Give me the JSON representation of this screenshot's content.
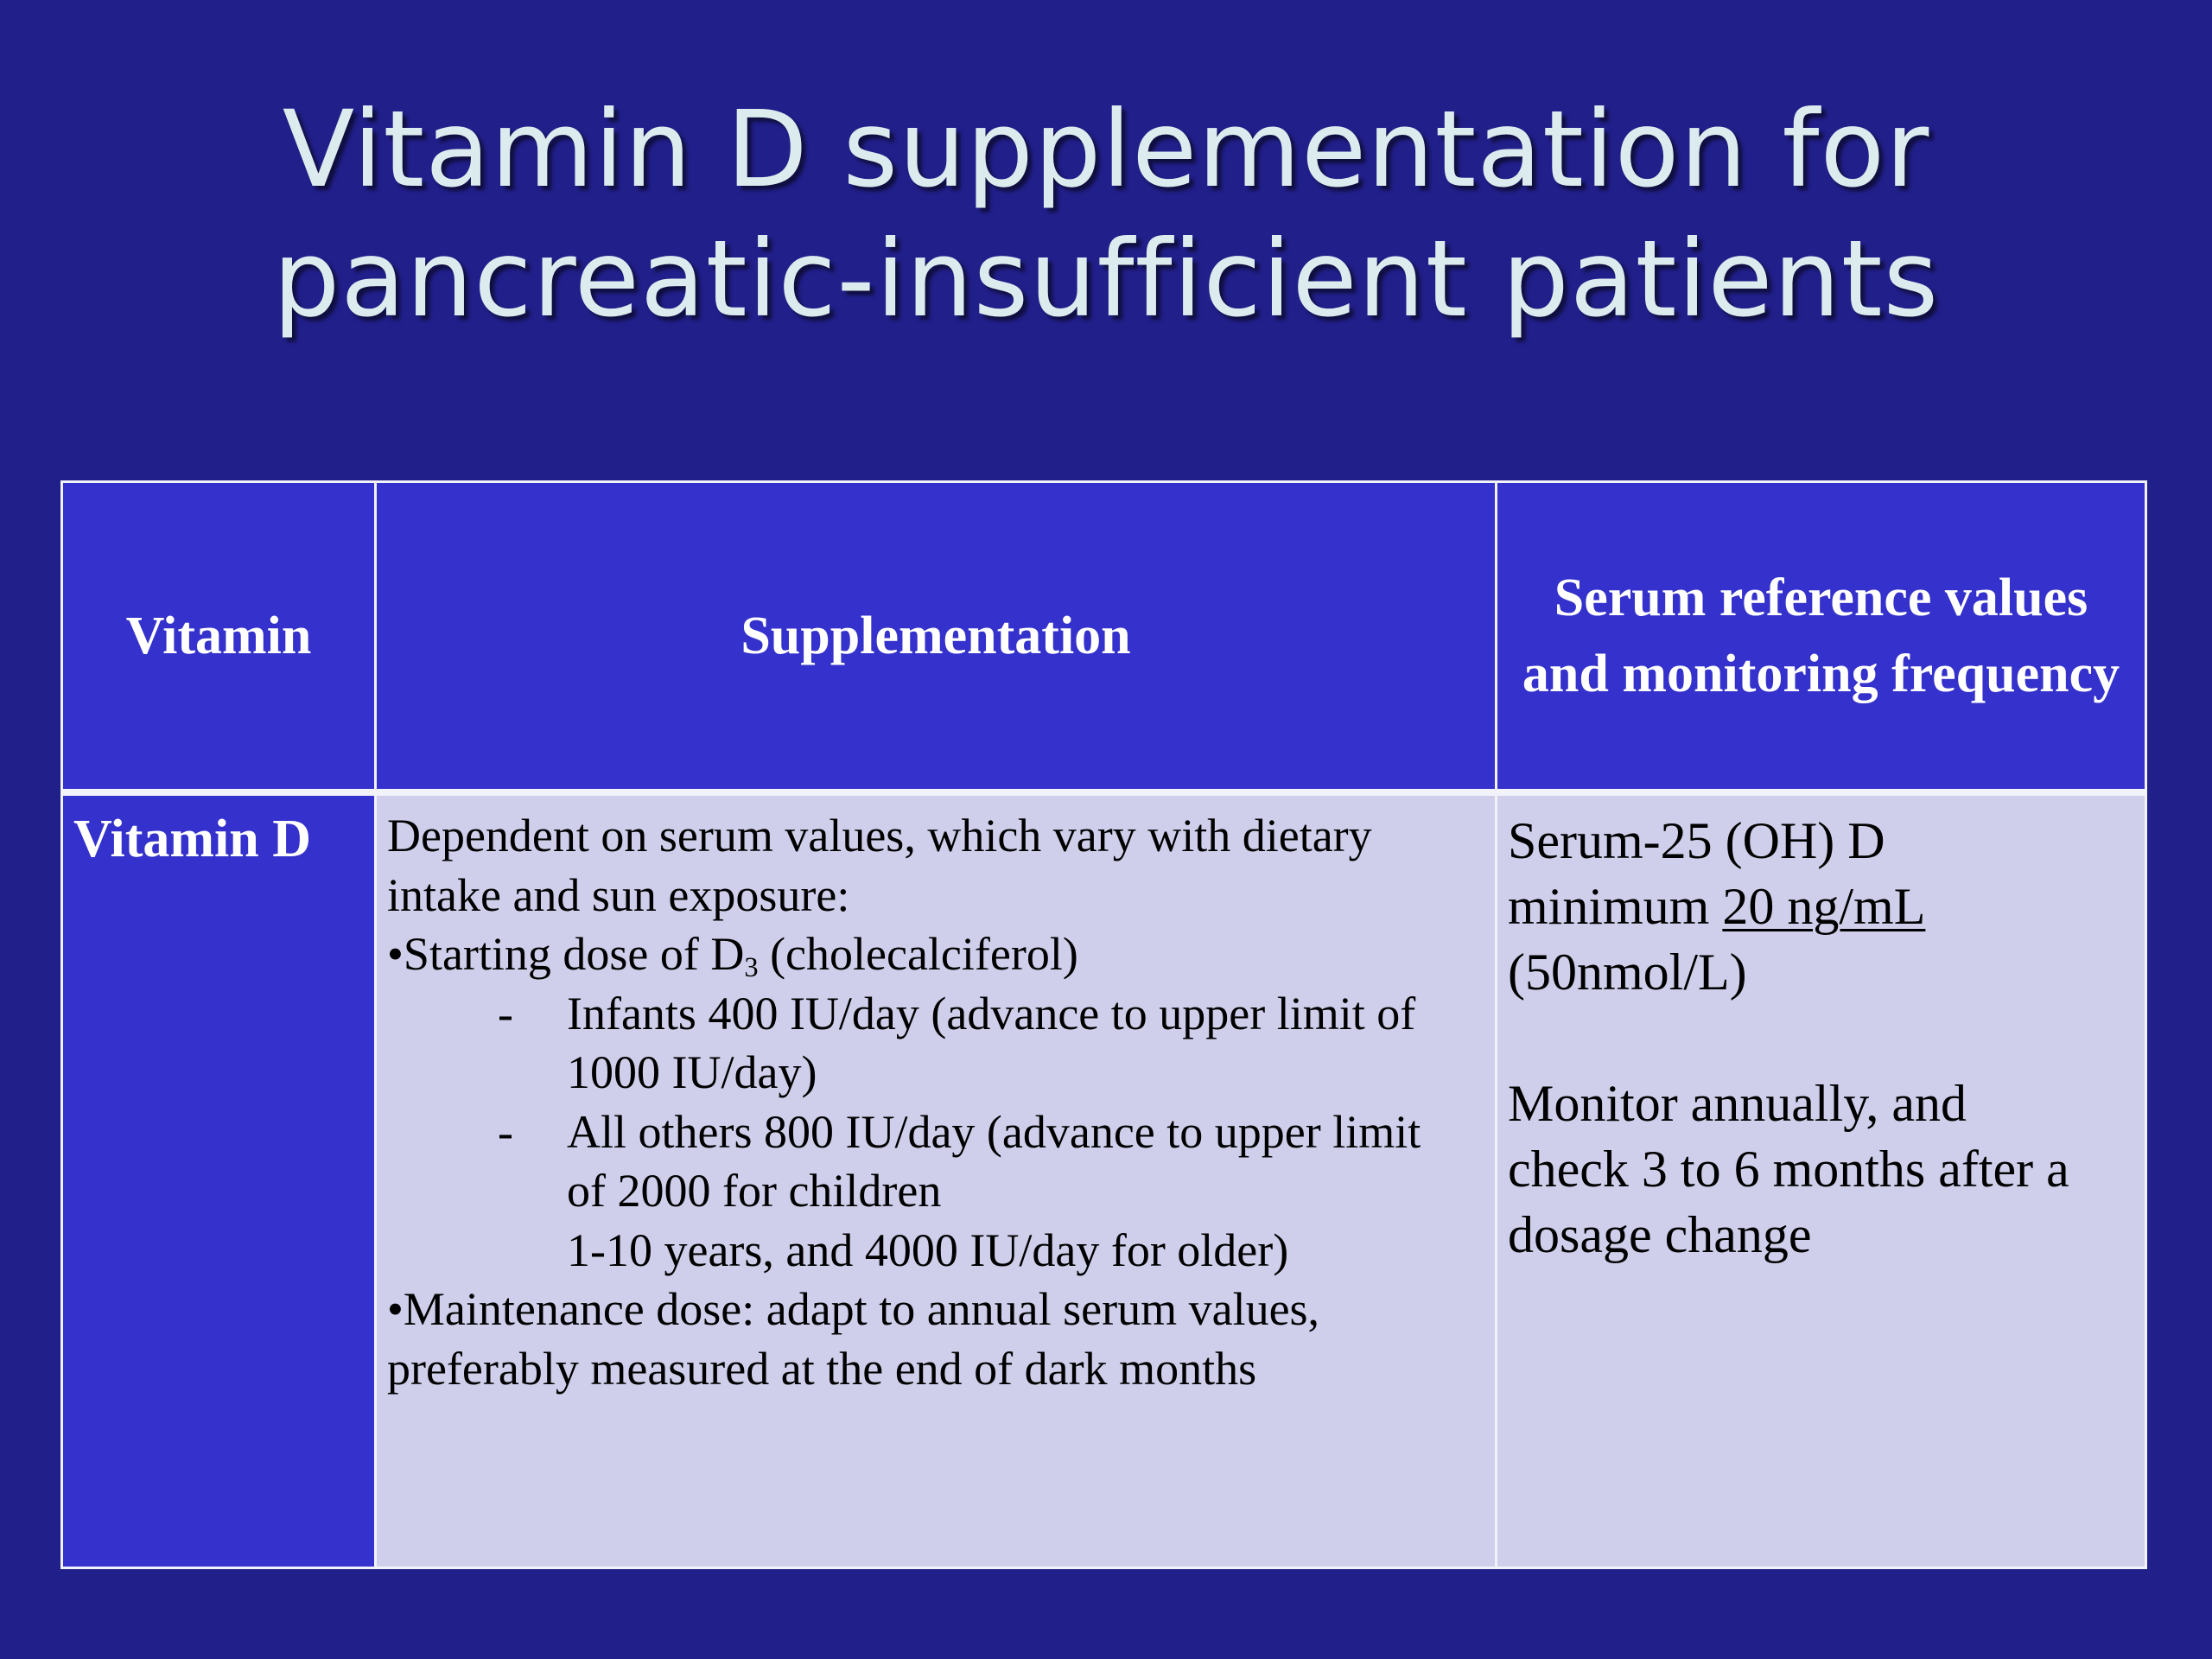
{
  "slide": {
    "title_lines": [
      "Vitamin D supplementation for",
      "pancreatic-insufficient patients"
    ]
  },
  "table": {
    "headers": {
      "vitamin": "Vitamin",
      "supplementation": "Supplementation",
      "reference_lines": [
        "Serum reference values",
        "and monitoring frequency"
      ]
    },
    "row": {
      "vitamin": "Vitamin D",
      "supplementation": {
        "intro_lines": [
          "Dependent on serum values, which vary with dietary",
          "intake and sun exposure:"
        ],
        "starting_dose": {
          "bullet": "•",
          "prefix": "Starting dose of D",
          "subscript": "3",
          "suffix": " (cholecalciferol)"
        },
        "dash": "-",
        "sub_items": [
          {
            "lines": [
              "Infants 400 IU/day (advance to upper limit of",
              "1000 IU/day)"
            ]
          },
          {
            "lines": [
              "All others 800 IU/day (advance to upper limit",
              "of 2000 for children",
              "1-10 years, and 4000 IU/day for older)"
            ]
          }
        ],
        "maintenance": {
          "bullet": "•",
          "lines": [
            "Maintenance dose: adapt to annual serum values,",
            "preferably measured at the end of dark months"
          ]
        }
      },
      "reference": {
        "line1": "Serum-25 (OH) D",
        "line2_prefix": "minimum ",
        "line2_underlined": "20 ng/mL",
        "line3": "(50nmol/L)",
        "monitor_lines": [
          "Monitor annually, and",
          "check 3 to 6 months after a",
          "dosage change"
        ]
      }
    }
  }
}
